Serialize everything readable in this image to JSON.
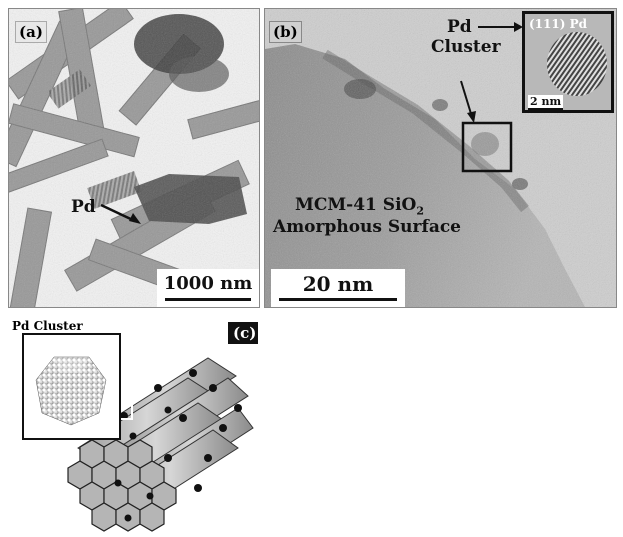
{
  "panel_a": {
    "label": "(a)",
    "pd_label": "Pd",
    "scale_bar": "1000 nm"
  },
  "panel_b": {
    "label": "(b)",
    "pd_cluster_label_line1": "Pd",
    "pd_cluster_label_line2": "Cluster",
    "surface_label_line1": "MCM-41 SiO",
    "surface_label_subscript": "2",
    "surface_label_line2": "Amorphous Surface",
    "scale_bar": "20 nm",
    "inset_title": "(111) Pd",
    "inset_scale": "2 nm"
  },
  "panel_c": {
    "label": "(c)",
    "inset_title": "Pd Cluster"
  }
}
